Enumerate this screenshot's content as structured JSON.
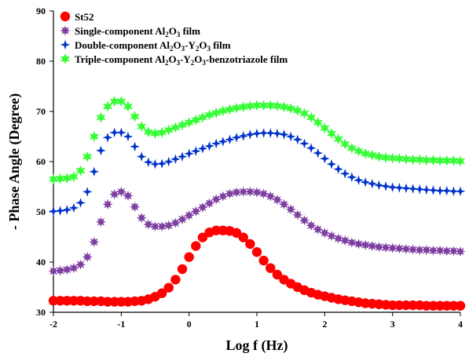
{
  "chart_data": {
    "type": "scatter",
    "xlabel": "Log f (Hz)",
    "ylabel": "- Phase Angle (Degree)",
    "xlim": [
      -2,
      4
    ],
    "ylim": [
      30,
      90
    ],
    "xticks": [
      "-2",
      "-1",
      "0",
      "1",
      "2",
      "3",
      "4"
    ],
    "yticks": [
      "30",
      "40",
      "50",
      "60",
      "70",
      "80",
      "90"
    ],
    "legend_position": "top-left",
    "series": [
      {
        "name": "St52",
        "marker": "circle",
        "color": "#ff0000",
        "legend_parts": [
          {
            "t": "St52"
          }
        ],
        "x": [
          -2.0,
          -1.9,
          -1.8,
          -1.7,
          -1.6,
          -1.5,
          -1.4,
          -1.3,
          -1.2,
          -1.1,
          -1.0,
          -0.9,
          -0.8,
          -0.7,
          -0.6,
          -0.5,
          -0.4,
          -0.3,
          -0.2,
          -0.1,
          0.0,
          0.1,
          0.2,
          0.3,
          0.4,
          0.5,
          0.6,
          0.7,
          0.8,
          0.9,
          1.0,
          1.1,
          1.2,
          1.3,
          1.4,
          1.5,
          1.6,
          1.7,
          1.8,
          1.9,
          2.0,
          2.1,
          2.2,
          2.3,
          2.4,
          2.5,
          2.6,
          2.7,
          2.8,
          2.9,
          3.0,
          3.1,
          3.2,
          3.3,
          3.4,
          3.5,
          3.6,
          3.7,
          3.8,
          3.9,
          4.0
        ],
        "y": [
          32.3,
          32.3,
          32.3,
          32.3,
          32.3,
          32.2,
          32.2,
          32.2,
          32.1,
          32.1,
          32.1,
          32.1,
          32.2,
          32.3,
          32.6,
          33.1,
          33.8,
          34.9,
          36.5,
          38.6,
          41.0,
          43.2,
          44.9,
          45.9,
          46.3,
          46.3,
          46.2,
          45.8,
          44.9,
          43.6,
          42.0,
          40.3,
          38.8,
          37.5,
          36.5,
          35.7,
          35.0,
          34.4,
          33.9,
          33.5,
          33.2,
          32.9,
          32.6,
          32.4,
          32.2,
          32.0,
          31.8,
          31.7,
          31.6,
          31.5,
          31.4,
          31.4,
          31.4,
          31.4,
          31.4,
          31.3,
          31.3,
          31.3,
          31.3,
          31.3,
          31.3
        ]
      },
      {
        "name": "Single-component Al2O3 film",
        "marker": "star8",
        "color": "#7e3fa0",
        "legend_parts": [
          {
            "t": "Single-component Al"
          },
          {
            "sub": "2"
          },
          {
            "t": "O"
          },
          {
            "sub": "3"
          },
          {
            "t": " film"
          }
        ],
        "x": [
          -2.0,
          -1.9,
          -1.8,
          -1.7,
          -1.6,
          -1.5,
          -1.4,
          -1.3,
          -1.2,
          -1.1,
          -1.0,
          -0.9,
          -0.8,
          -0.7,
          -0.6,
          -0.5,
          -0.4,
          -0.3,
          -0.2,
          -0.1,
          0.0,
          0.1,
          0.2,
          0.3,
          0.4,
          0.5,
          0.6,
          0.7,
          0.8,
          0.9,
          1.0,
          1.1,
          1.2,
          1.3,
          1.4,
          1.5,
          1.6,
          1.7,
          1.8,
          1.9,
          2.0,
          2.1,
          2.2,
          2.3,
          2.4,
          2.5,
          2.6,
          2.7,
          2.8,
          2.9,
          3.0,
          3.1,
          3.2,
          3.3,
          3.4,
          3.5,
          3.6,
          3.7,
          3.8,
          3.9,
          4.0
        ],
        "y": [
          38.2,
          38.3,
          38.5,
          38.8,
          39.5,
          41.0,
          44.0,
          48.0,
          51.5,
          53.5,
          54.0,
          53.2,
          51.0,
          48.8,
          47.5,
          47.1,
          47.1,
          47.3,
          47.8,
          48.5,
          49.3,
          50.1,
          50.9,
          51.7,
          52.5,
          53.1,
          53.6,
          53.9,
          54.0,
          54.0,
          53.9,
          53.6,
          53.1,
          52.4,
          51.5,
          50.5,
          49.4,
          48.3,
          47.3,
          46.5,
          45.8,
          45.2,
          44.7,
          44.3,
          43.9,
          43.6,
          43.4,
          43.2,
          43.0,
          42.9,
          42.8,
          42.7,
          42.6,
          42.5,
          42.4,
          42.4,
          42.3,
          42.3,
          42.2,
          42.2,
          42.1
        ]
      },
      {
        "name": "Double-component Al2O3-Y2O3 film",
        "marker": "diamond4",
        "color": "#0033cc",
        "legend_parts": [
          {
            "t": "Double-component Al"
          },
          {
            "sub": "2"
          },
          {
            "t": "O"
          },
          {
            "sub": "3"
          },
          {
            "t": "-Y"
          },
          {
            "sub": "2"
          },
          {
            "t": "O"
          },
          {
            "sub": "3"
          },
          {
            "t": " film"
          }
        ],
        "x": [
          -2.0,
          -1.9,
          -1.8,
          -1.7,
          -1.6,
          -1.5,
          -1.4,
          -1.3,
          -1.2,
          -1.1,
          -1.0,
          -0.9,
          -0.8,
          -0.7,
          -0.6,
          -0.5,
          -0.4,
          -0.3,
          -0.2,
          -0.1,
          0.0,
          0.1,
          0.2,
          0.3,
          0.4,
          0.5,
          0.6,
          0.7,
          0.8,
          0.9,
          1.0,
          1.1,
          1.2,
          1.3,
          1.4,
          1.5,
          1.6,
          1.7,
          1.8,
          1.9,
          2.0,
          2.1,
          2.2,
          2.3,
          2.4,
          2.5,
          2.6,
          2.7,
          2.8,
          2.9,
          3.0,
          3.1,
          3.2,
          3.3,
          3.4,
          3.5,
          3.6,
          3.7,
          3.8,
          3.9,
          4.0
        ],
        "y": [
          50.1,
          50.2,
          50.4,
          50.8,
          51.8,
          54.0,
          58.0,
          62.2,
          64.8,
          65.8,
          65.8,
          65.0,
          63.0,
          61.0,
          59.9,
          59.5,
          59.6,
          60.0,
          60.5,
          61.0,
          61.6,
          62.1,
          62.6,
          63.1,
          63.6,
          64.0,
          64.4,
          64.8,
          65.1,
          65.4,
          65.6,
          65.7,
          65.7,
          65.6,
          65.4,
          65.0,
          64.4,
          63.6,
          62.7,
          61.7,
          60.6,
          59.5,
          58.5,
          57.6,
          56.9,
          56.3,
          55.9,
          55.6,
          55.3,
          55.1,
          54.9,
          54.8,
          54.7,
          54.6,
          54.5,
          54.4,
          54.3,
          54.2,
          54.2,
          54.1,
          54.1
        ]
      },
      {
        "name": "Triple-component Al2O3-Y2O3-benzotriazole film",
        "marker": "star6",
        "color": "#33ff33",
        "legend_parts": [
          {
            "t": "Triple-component Al"
          },
          {
            "sub": "2"
          },
          {
            "t": "O"
          },
          {
            "sub": "3"
          },
          {
            "t": "-Y"
          },
          {
            "sub": "2"
          },
          {
            "t": "O"
          },
          {
            "sub": "3"
          },
          {
            "t": "-benzotriazole film"
          }
        ],
        "x": [
          -2.0,
          -1.9,
          -1.8,
          -1.7,
          -1.6,
          -1.5,
          -1.4,
          -1.3,
          -1.2,
          -1.1,
          -1.0,
          -0.9,
          -0.8,
          -0.7,
          -0.6,
          -0.5,
          -0.4,
          -0.3,
          -0.2,
          -0.1,
          0.0,
          0.1,
          0.2,
          0.3,
          0.4,
          0.5,
          0.6,
          0.7,
          0.8,
          0.9,
          1.0,
          1.1,
          1.2,
          1.3,
          1.4,
          1.5,
          1.6,
          1.7,
          1.8,
          1.9,
          2.0,
          2.1,
          2.2,
          2.3,
          2.4,
          2.5,
          2.6,
          2.7,
          2.8,
          2.9,
          3.0,
          3.1,
          3.2,
          3.3,
          3.4,
          3.5,
          3.6,
          3.7,
          3.8,
          3.9,
          4.0
        ],
        "y": [
          56.5,
          56.6,
          56.7,
          57.0,
          58.2,
          61.0,
          65.0,
          68.8,
          71.0,
          72.0,
          72.0,
          71.0,
          69.0,
          67.0,
          65.9,
          65.6,
          65.8,
          66.3,
          66.8,
          67.3,
          67.8,
          68.3,
          68.8,
          69.3,
          69.7,
          70.1,
          70.4,
          70.7,
          70.9,
          71.1,
          71.2,
          71.2,
          71.2,
          71.1,
          70.9,
          70.6,
          70.2,
          69.6,
          68.8,
          67.8,
          66.7,
          65.6,
          64.5,
          63.5,
          62.7,
          62.1,
          61.6,
          61.3,
          61.0,
          60.8,
          60.7,
          60.6,
          60.5,
          60.4,
          60.4,
          60.3,
          60.3,
          60.2,
          60.2,
          60.2,
          60.1
        ]
      }
    ]
  }
}
